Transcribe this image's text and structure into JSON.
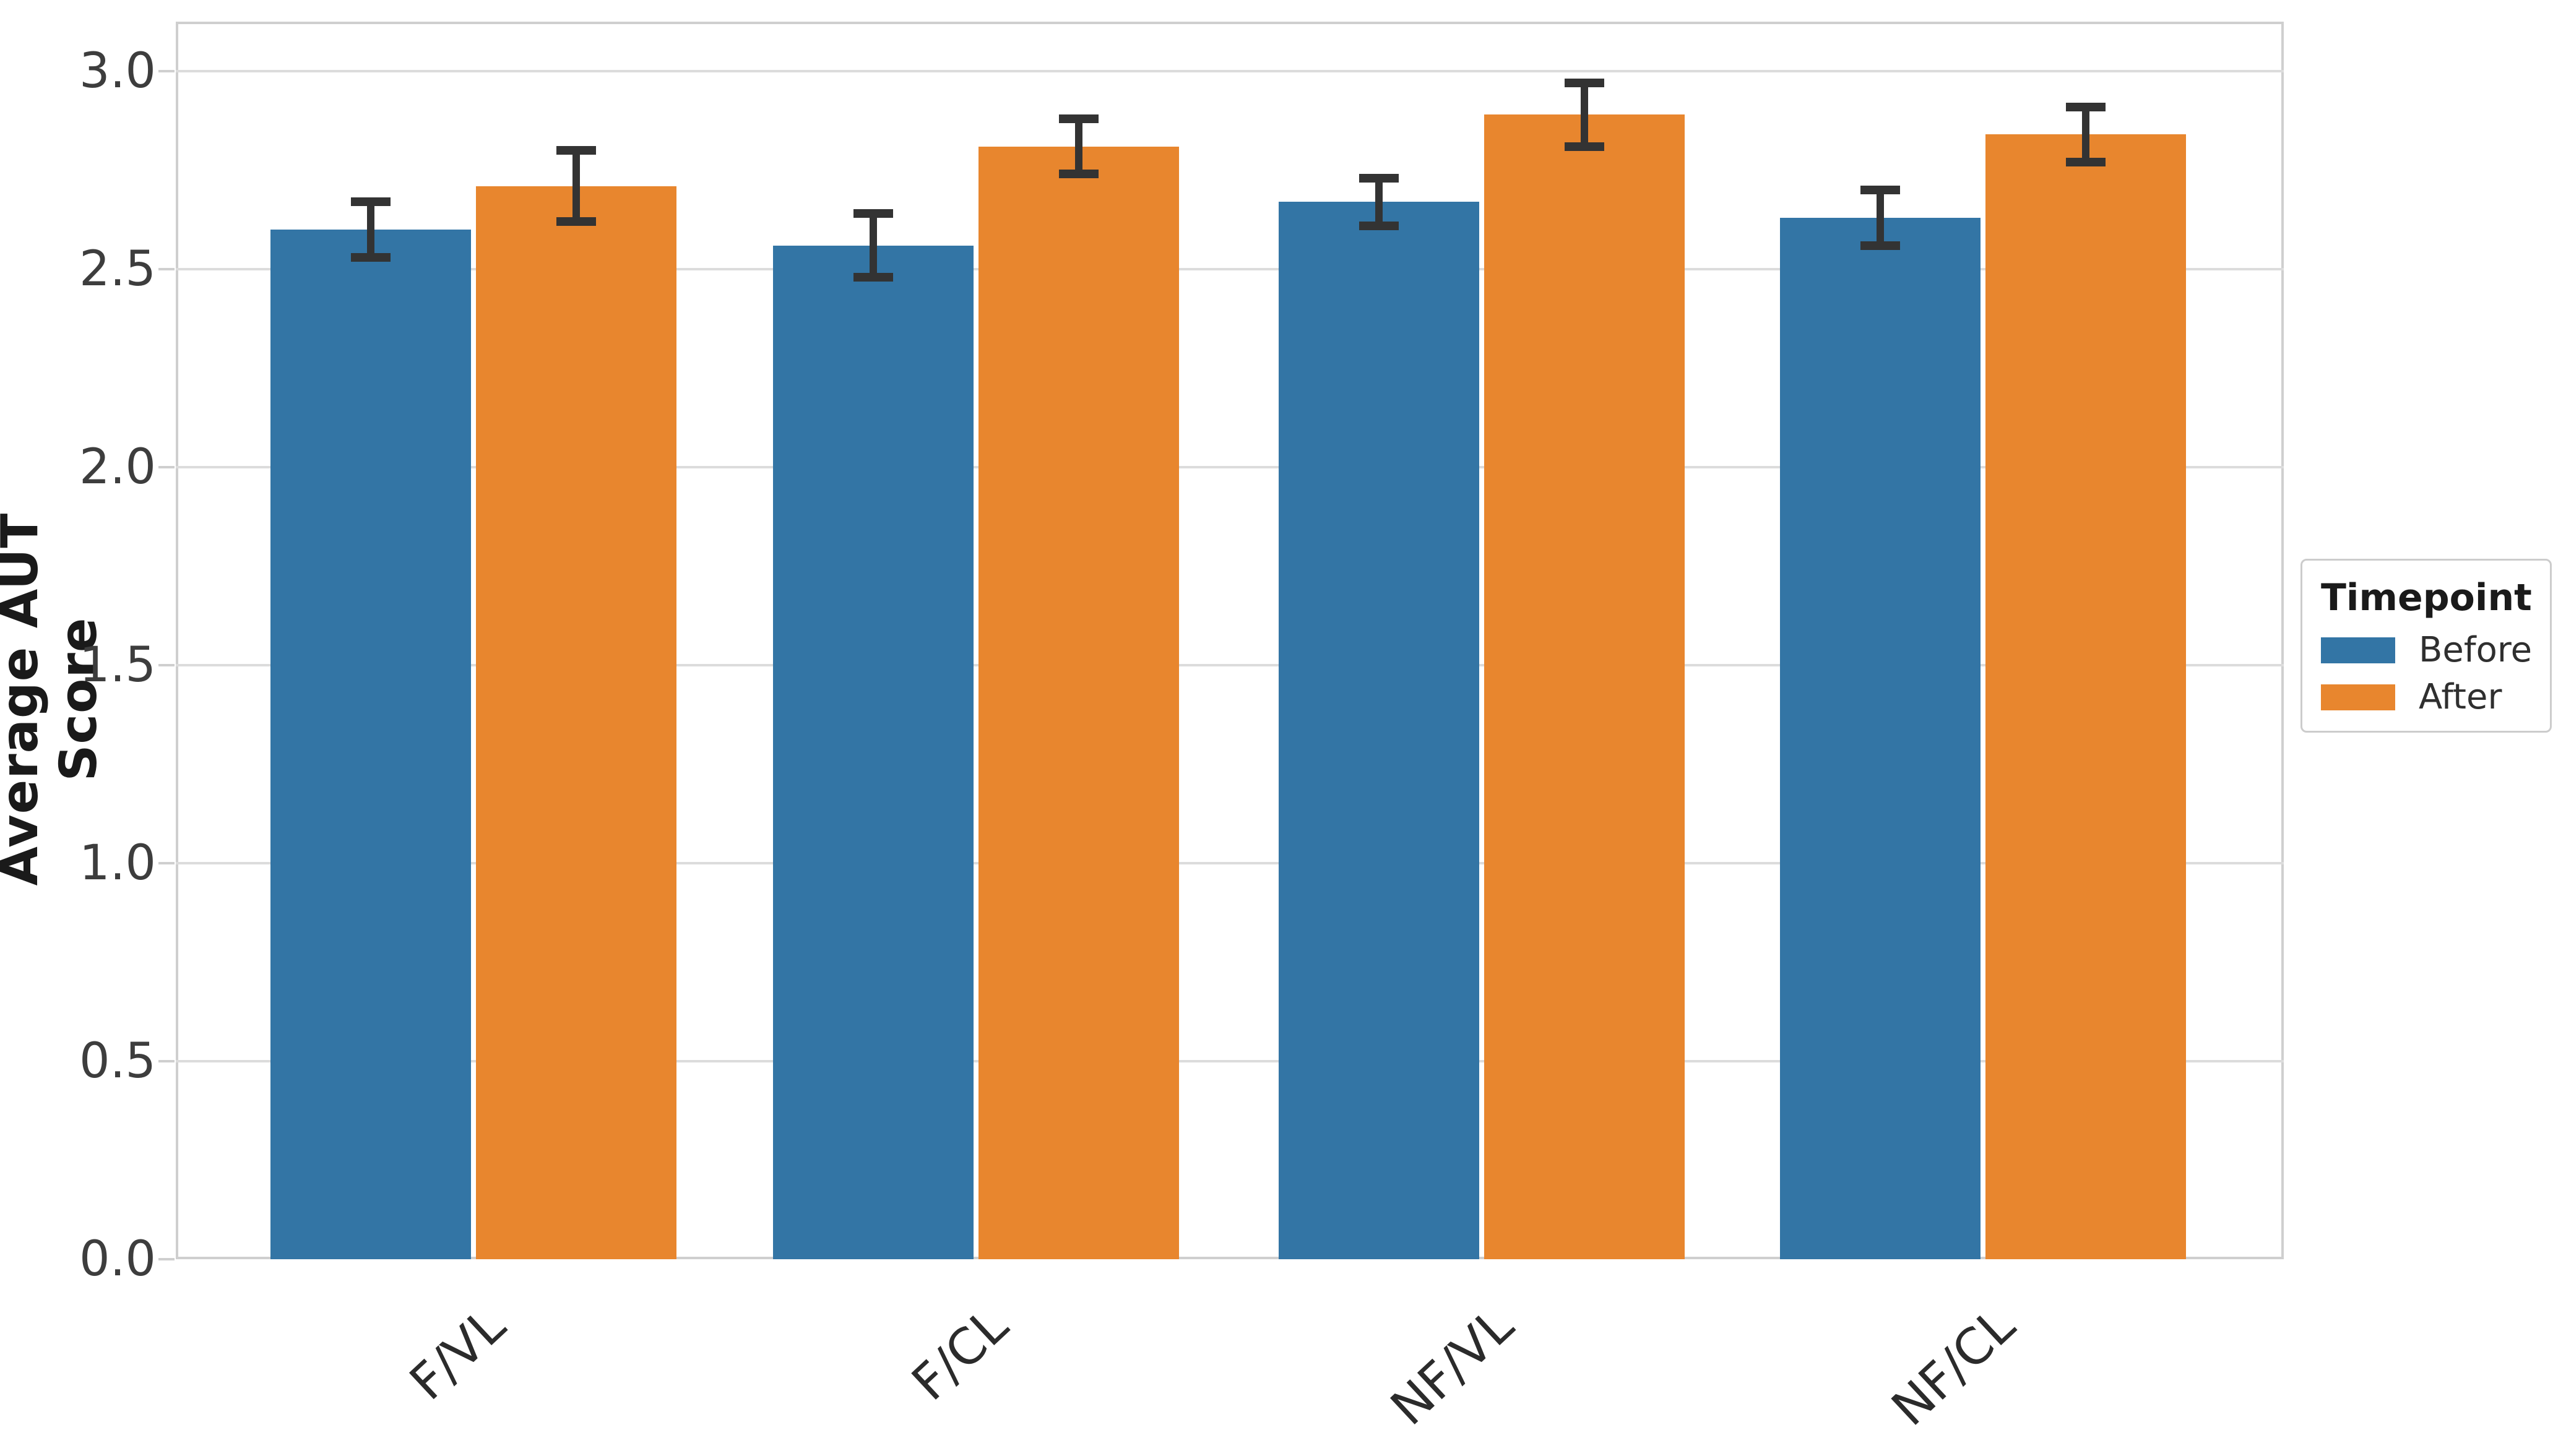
{
  "figure": {
    "background": "#ffffff",
    "grid_color": "#dcdcdc",
    "spine_color": "#cfcfcf",
    "tick_text_color": "#3d3d3d",
    "text_color": "#1a1a1a"
  },
  "chart_data": {
    "type": "bar",
    "title": "",
    "xlabel": "",
    "ylabel": "Average AUT Score",
    "categories": [
      "F/VL",
      "F/CL",
      "NF/VL",
      "NF/CL"
    ],
    "series": [
      {
        "name": "Before",
        "color": "#3375a5",
        "values": [
          2.6,
          2.56,
          2.67,
          2.63
        ],
        "errors": [
          0.07,
          0.08,
          0.06,
          0.07
        ]
      },
      {
        "name": "After",
        "color": "#e8862e",
        "values": [
          2.71,
          2.81,
          2.89,
          2.84
        ],
        "errors": [
          0.09,
          0.07,
          0.08,
          0.07
        ]
      }
    ],
    "error_bar_color": "#333333",
    "y_ticks": [
      "3.0",
      "2.5",
      "2.0",
      "1.5",
      "1.0",
      "0.5",
      "0.0"
    ],
    "ylim": [
      0,
      3.125
    ],
    "grid": true,
    "legend": {
      "title": "Timepoint",
      "entries": [
        "Before",
        "After"
      ],
      "position": "right-outside"
    }
  }
}
